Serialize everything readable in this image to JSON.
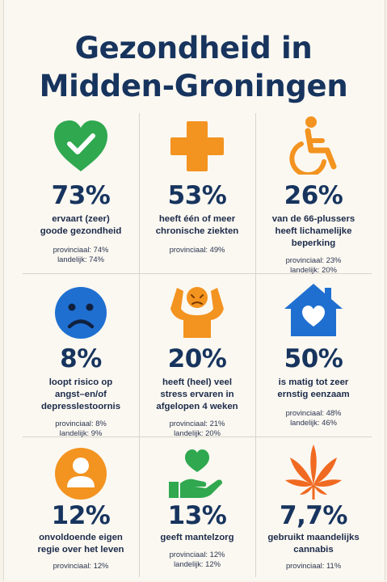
{
  "title": {
    "line1": "Gezondheid in",
    "line2": "Midden-Groningen"
  },
  "colors": {
    "green": "#2fa84f",
    "orange": "#f39320",
    "blue": "#1f6fd1",
    "navy": "#17345e"
  },
  "cards": [
    {
      "icon": "heart-check-icon",
      "percent": "73%",
      "desc": [
        "ervaart (zeer)",
        "goode gezondheid"
      ],
      "stats": [
        "provinciaal: 74%",
        "landelijk: 74%"
      ]
    },
    {
      "icon": "medical-cross-icon",
      "percent": "53%",
      "desc": [
        "heeft één of meer",
        "chronische ziekten"
      ],
      "stats": [
        "provinciaal: 49%"
      ]
    },
    {
      "icon": "wheelchair-icon",
      "percent": "26%",
      "desc": [
        "van de 66-plussers",
        "heeft lichamelijke",
        "beperking"
      ],
      "stats": [
        "provinciaal: 23%",
        "landelijk: 20%"
      ]
    },
    {
      "icon": "sad-face-icon",
      "percent": "8%",
      "desc": [
        "loopt risico op",
        "angst–en/of",
        "depresslestoornis"
      ],
      "stats": [
        "provinciaal: 8%",
        "landelijk: 9%"
      ]
    },
    {
      "icon": "stressed-person-icon",
      "percent": "20%",
      "desc": [
        "heeft (heel) veel",
        "stress ervaren in",
        "afgelopen 4 weken"
      ],
      "stats": [
        "provinciaal: 21%",
        "landelijk: 20%"
      ]
    },
    {
      "icon": "house-heart-icon",
      "percent": "50%",
      "desc": [
        "is matig tot zeer",
        "ernstig eenzaam"
      ],
      "stats": [
        "provinciaal: 48%",
        "landelijk: 46%"
      ]
    },
    {
      "icon": "person-icon",
      "percent": "12%",
      "desc": [
        "onvoldoende eigen",
        "regie over het leven"
      ],
      "stats": [
        "provinciaal: 12%"
      ]
    },
    {
      "icon": "hand-heart-icon",
      "percent": "13%",
      "desc": [
        "geeft mantelzorg"
      ],
      "stats": [
        "provinciaal: 12%",
        "landelijk: 12%"
      ]
    },
    {
      "icon": "cannabis-leaf-icon",
      "percent": "7,7%",
      "desc": [
        "gebruikt maandelijks",
        "cannabis"
      ],
      "stats": [
        "provinciaal: 11%"
      ]
    }
  ]
}
